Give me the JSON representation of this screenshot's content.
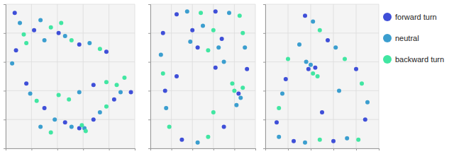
{
  "chart_data": [
    {
      "type": "scatter",
      "tick_labels": false,
      "grid": true,
      "xlim": [
        0,
        100
      ],
      "ylim": [
        0,
        100
      ],
      "xticks": [
        0,
        20,
        40,
        60,
        80,
        100
      ],
      "yticks": [
        0,
        20,
        40,
        60,
        80,
        100
      ],
      "series": [
        {
          "color": "#3f4fd8",
          "marker": "circle",
          "x": [
            7,
            22,
            41,
            57,
            78,
            8,
            16,
            30,
            46,
            57,
            68,
            84,
            68,
            97
          ],
          "values": [
            94,
            82,
            80,
            72,
            67,
            68,
            45,
            28,
            18,
            14,
            20,
            34,
            44,
            39
          ]
        },
        {
          "color": "#3b9ecf",
          "marker": "circle",
          "x": [
            11,
            27,
            46,
            65,
            30,
            5,
            19,
            38,
            51,
            61,
            73,
            89,
            57,
            27
          ],
          "values": [
            87,
            89,
            78,
            73,
            75,
            59,
            38,
            20,
            15,
            14,
            25,
            39,
            39,
            15
          ]
        },
        {
          "color": "#41e6a2",
          "marker": "circle",
          "x": [
            14,
            35,
            51,
            73,
            16,
            43,
            24,
            59,
            62,
            78,
            86,
            78,
            49,
            41,
            92,
            35
          ],
          "values": [
            79,
            84,
            75,
            69,
            73,
            87,
            33,
            16,
            12,
            29,
            44,
            46,
            34,
            37,
            49,
            11
          ]
        }
      ]
    },
    {
      "type": "scatter",
      "tick_labels": false,
      "grid": true,
      "xlim": [
        0,
        100
      ],
      "ylim": [
        0,
        100
      ],
      "xticks": [
        0,
        20,
        40,
        60,
        80,
        100
      ],
      "yticks": [
        0,
        20,
        40,
        60,
        80,
        100
      ],
      "series": [
        {
          "color": "#3f4fd8",
          "marker": "circle",
          "x": [
            25,
            62,
            12,
            14,
            30,
            70,
            92,
            40,
            68,
            45,
            84,
            62,
            25
          ],
          "values": [
            93,
            95,
            80,
            40,
            6,
            15,
            55,
            82,
            76,
            70,
            38,
            56,
            50
          ]
        },
        {
          "color": "#3b9ecf",
          "marker": "circle",
          "x": [
            35,
            75,
            10,
            15,
            45,
            82,
            90,
            50,
            65,
            38,
            86,
            70
          ],
          "values": [
            95,
            94,
            65,
            28,
            4,
            30,
            70,
            85,
            70,
            74,
            35,
            60
          ]
        },
        {
          "color": "#41e6a2",
          "marker": "circle",
          "x": [
            48,
            85,
            12,
            18,
            55,
            88,
            88,
            60,
            55,
            80,
            78,
            60
          ],
          "values": [
            94,
            92,
            52,
            15,
            8,
            42,
            80,
            82,
            68,
            40,
            45,
            25
          ]
        }
      ]
    },
    {
      "type": "scatter",
      "tick_labels": false,
      "grid": true,
      "legend": "right",
      "xlim": [
        0,
        100
      ],
      "ylim": [
        0,
        100
      ],
      "xticks": [
        0,
        20,
        40,
        60,
        80,
        100
      ],
      "yticks": [
        0,
        20,
        40,
        60,
        80,
        100
      ],
      "series": [
        {
          "name": "forward turn",
          "color": "#3f4fd8",
          "marker": "circle",
          "x": [
            35,
            55,
            38,
            44,
            18,
            10,
            25,
            60,
            88,
            80,
            50
          ],
          "values": [
            92,
            75,
            55,
            56,
            48,
            18,
            5,
            5,
            20,
            55,
            25
          ]
        },
        {
          "name": "neutral",
          "color": "#3b9ecf",
          "marker": "circle",
          "x": [
            42,
            62,
            40,
            36,
            15,
            12,
            35,
            72,
            90,
            30,
            65
          ],
          "values": [
            88,
            70,
            58,
            60,
            38,
            8,
            4,
            7,
            32,
            72,
            40
          ]
        },
        {
          "name": "backward turn",
          "color": "#41e6a2",
          "marker": "circle",
          "x": [
            48,
            70,
            42,
            46,
            12,
            48,
            82,
            85,
            20
          ],
          "values": [
            82,
            62,
            52,
            50,
            28,
            6,
            6,
            45,
            62
          ]
        }
      ]
    }
  ]
}
